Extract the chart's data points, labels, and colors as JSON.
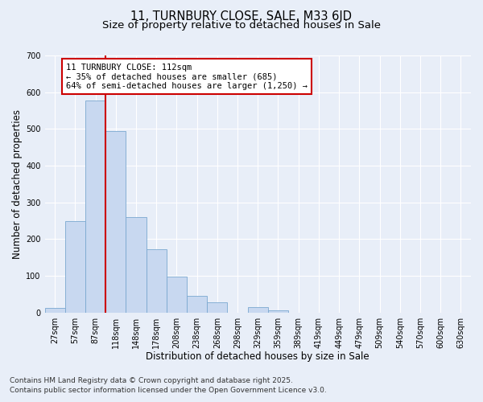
{
  "title": "11, TURNBURY CLOSE, SALE, M33 6JD",
  "subtitle": "Size of property relative to detached houses in Sale",
  "xlabel": "Distribution of detached houses by size in Sale",
  "ylabel": "Number of detached properties",
  "bin_labels": [
    "27sqm",
    "57sqm",
    "87sqm",
    "118sqm",
    "148sqm",
    "178sqm",
    "208sqm",
    "238sqm",
    "268sqm",
    "298sqm",
    "329sqm",
    "359sqm",
    "389sqm",
    "419sqm",
    "449sqm",
    "479sqm",
    "509sqm",
    "540sqm",
    "570sqm",
    "600sqm",
    "630sqm"
  ],
  "bar_values": [
    12,
    248,
    578,
    495,
    260,
    172,
    97,
    46,
    27,
    0,
    15,
    5,
    0,
    0,
    0,
    0,
    0,
    0,
    0,
    0,
    0
  ],
  "bar_color": "#c8d8f0",
  "bar_edgecolor": "#7aa8d0",
  "vline_x_index": 3,
  "vline_color": "#cc0000",
  "annotation_title": "11 TURNBURY CLOSE: 112sqm",
  "annotation_line1": "← 35% of detached houses are smaller (685)",
  "annotation_line2": "64% of semi-detached houses are larger (1,250) →",
  "annotation_box_facecolor": "#ffffff",
  "annotation_box_edgecolor": "#cc0000",
  "ylim": [
    0,
    700
  ],
  "yticks": [
    0,
    100,
    200,
    300,
    400,
    500,
    600,
    700
  ],
  "footer_line1": "Contains HM Land Registry data © Crown copyright and database right 2025.",
  "footer_line2": "Contains public sector information licensed under the Open Government Licence v3.0.",
  "background_color": "#e8eef8",
  "plot_bg_color": "#e8eef8",
  "grid_color": "#ffffff",
  "title_fontsize": 10.5,
  "subtitle_fontsize": 9.5,
  "axis_label_fontsize": 8.5,
  "tick_fontsize": 7,
  "annotation_fontsize": 7.5,
  "footer_fontsize": 6.5
}
